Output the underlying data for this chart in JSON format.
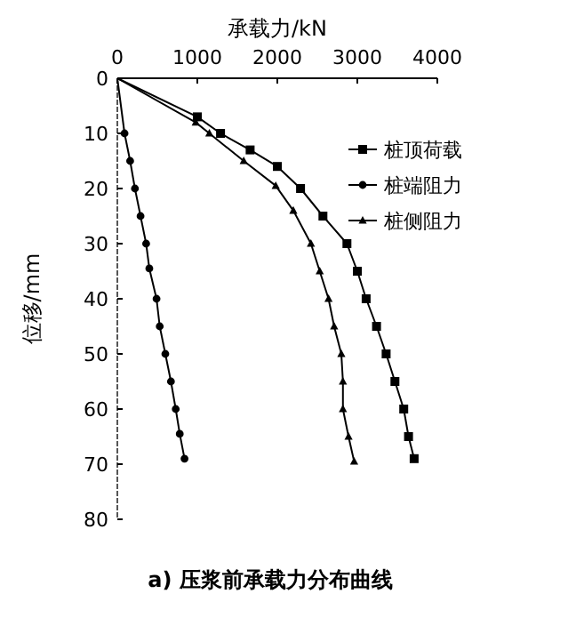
{
  "chart_data": {
    "type": "line",
    "xlabel": "承载力/kN",
    "ylabel": "位移/mm",
    "annotations": [
      "a)  压浆前承载力分布曲线"
    ],
    "xlim": [
      0,
      4000
    ],
    "xticks": [
      0,
      1000,
      2000,
      3000,
      4000
    ],
    "ylim": [
      80,
      0
    ],
    "yticks": [
      0,
      10,
      20,
      30,
      40,
      50,
      60,
      70,
      80
    ],
    "grid": false,
    "legend": "right",
    "series": [
      {
        "name": "桩顶荷载",
        "color": "#000000",
        "marker": "square",
        "x": [
          0,
          1000,
          1290,
          1660,
          2000,
          2290,
          2570,
          2870,
          3000,
          3110,
          3240,
          3360,
          3470,
          3580,
          3640,
          3710
        ],
        "values": [
          0,
          7,
          10,
          13,
          16,
          20,
          25,
          30,
          35,
          40,
          45,
          50,
          55,
          60,
          65,
          69
        ]
      },
      {
        "name": "桩端阻力",
        "color": "#000000",
        "marker": "circle",
        "x": [
          0,
          90,
          160,
          220,
          290,
          360,
          400,
          490,
          530,
          600,
          670,
          730,
          780,
          840
        ],
        "values": [
          0,
          10,
          15,
          20,
          25,
          30,
          34.5,
          40,
          45,
          50,
          55,
          60,
          64.5,
          69
        ]
      },
      {
        "name": "桩侧阻力",
        "color": "#000000",
        "marker": "triangle",
        "x": [
          0,
          980,
          1150,
          1580,
          1980,
          2200,
          2420,
          2530,
          2640,
          2710,
          2800,
          2820,
          2820,
          2890,
          2960
        ],
        "values": [
          0,
          8,
          10,
          15,
          19.5,
          24,
          30,
          35,
          40,
          45,
          50,
          55,
          60,
          65,
          69.5
        ]
      }
    ]
  }
}
